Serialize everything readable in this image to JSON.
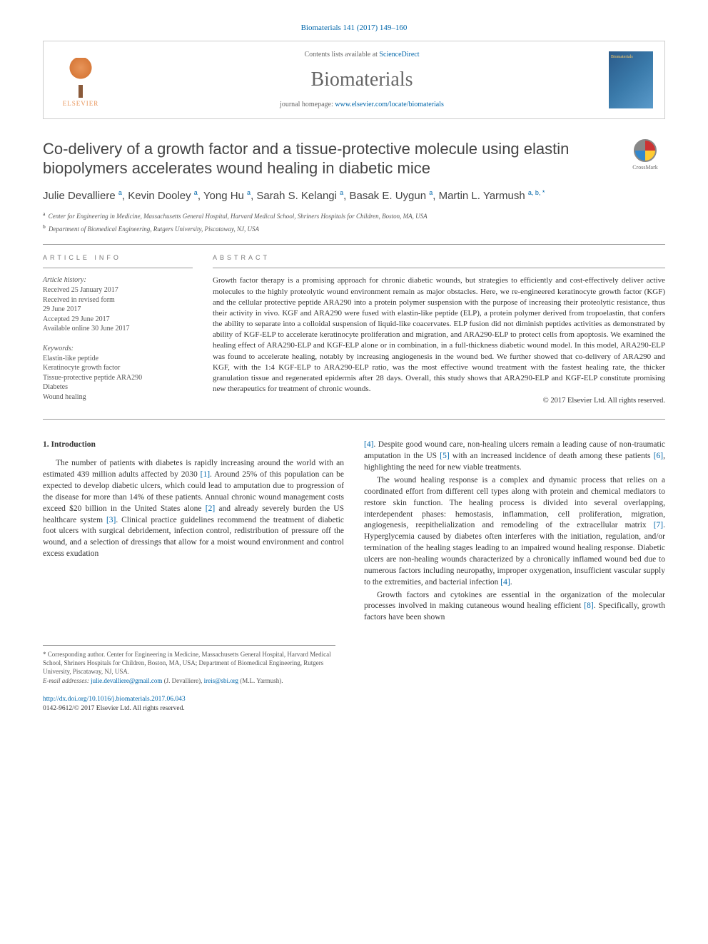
{
  "citation": "Biomaterials 141 (2017) 149–160",
  "header": {
    "contents_prefix": "Contents lists available at ",
    "contents_link": "ScienceDirect",
    "journal": "Biomaterials",
    "homepage_prefix": "journal homepage: ",
    "homepage_url": "www.elsevier.com/locate/biomaterials",
    "publisher": "ELSEVIER"
  },
  "crossmark_label": "CrossMark",
  "title": "Co-delivery of a growth factor and a tissue-protective molecule using elastin biopolymers accelerates wound healing in diabetic mice",
  "authors_html": "Julie Devalliere <sup>a</sup>, Kevin Dooley <sup>a</sup>, Yong Hu <sup>a</sup>, Sarah S. Kelangi <sup>a</sup>, Basak E. Uygun <sup>a</sup>, Martin L. Yarmush <sup>a, b, *</sup>",
  "affiliations": [
    {
      "key": "a",
      "text": "Center for Engineering in Medicine, Massachusetts General Hospital, Harvard Medical School, Shriners Hospitals for Children, Boston, MA, USA"
    },
    {
      "key": "b",
      "text": "Department of Biomedical Engineering, Rutgers University, Piscataway, NJ, USA"
    }
  ],
  "info": {
    "label": "ARTICLE INFO",
    "history_label": "Article history:",
    "history": [
      "Received 25 January 2017",
      "Received in revised form",
      "29 June 2017",
      "Accepted 29 June 2017",
      "Available online 30 June 2017"
    ],
    "keywords_label": "Keywords:",
    "keywords": [
      "Elastin-like peptide",
      "Keratinocyte growth factor",
      "Tissue-protective peptide ARA290",
      "Diabetes",
      "Wound healing"
    ]
  },
  "abstract": {
    "label": "ABSTRACT",
    "text": "Growth factor therapy is a promising approach for chronic diabetic wounds, but strategies to efficiently and cost-effectively deliver active molecules to the highly proteolytic wound environment remain as major obstacles. Here, we re-engineered keratinocyte growth factor (KGF) and the cellular protective peptide ARA290 into a protein polymer suspension with the purpose of increasing their proteolytic resistance, thus their activity in vivo. KGF and ARA290 were fused with elastin-like peptide (ELP), a protein polymer derived from tropoelastin, that confers the ability to separate into a colloidal suspension of liquid-like coacervates. ELP fusion did not diminish peptides activities as demonstrated by ability of KGF-ELP to accelerate keratinocyte proliferation and migration, and ARA290-ELP to protect cells from apoptosis. We examined the healing effect of ARA290-ELP and KGF-ELP alone or in combination, in a full-thickness diabetic wound model. In this model, ARA290-ELP was found to accelerate healing, notably by increasing angiogenesis in the wound bed. We further showed that co-delivery of ARA290 and KGF, with the 1:4 KGF-ELP to ARA290-ELP ratio, was the most effective wound treatment with the fastest healing rate, the thicker granulation tissue and regenerated epidermis after 28 days. Overall, this study shows that ARA290-ELP and KGF-ELP constitute promising new therapeutics for treatment of chronic wounds.",
    "copyright": "© 2017 Elsevier Ltd. All rights reserved."
  },
  "body": {
    "section_number": "1.",
    "section_title": "Introduction",
    "col1_p1_a": "The number of patients with diabetes is rapidly increasing around the world with an estimated 439 million adults affected by 2030 ",
    "col1_p1_b": ". Around 25% of this population can be expected to develop diabetic ulcers, which could lead to amputation due to progression of the disease for more than 14% of these patients. Annual chronic wound management costs exceed $20 billion in the United States alone ",
    "col1_p1_c": " and already severely burden the US healthcare system ",
    "col1_p1_d": ". Clinical practice guidelines recommend the treatment of diabetic foot ulcers with surgical debridement, infection control, redistribution of pressure off the wound, and a selection of dressings that allow for a moist wound environment and control excess exudation",
    "col2_p1_a": ". Despite good wound care, non-healing ulcers remain a leading cause of non-traumatic amputation in the US ",
    "col2_p1_b": " with an increased incidence of death among these patients ",
    "col2_p1_c": ", highlighting the need for new viable treatments.",
    "col2_p2_a": "The wound healing response is a complex and dynamic process that relies on a coordinated effort from different cell types along with protein and chemical mediators to restore skin function. The healing process is divided into several overlapping, interdependent phases: hemostasis, inflammation, cell proliferation, migration, angiogenesis, reepithelialization and remodeling of the extracellular matrix ",
    "col2_p2_b": ". Hyperglycemia caused by diabetes often interferes with the initiation, regulation, and/or termination of the healing stages leading to an impaired wound healing response. Diabetic ulcers are non-healing wounds characterized by a chronically inflamed wound bed due to numerous factors including neuropathy, improper oxygenation, insufficient vascular supply to the extremities, and bacterial infection ",
    "col2_p2_c": ".",
    "col2_p3_a": "Growth factors and cytokines are essential in the organization of the molecular processes involved in making cutaneous wound healing efficient ",
    "col2_p3_b": ". Specifically, growth factors have been shown",
    "refs": {
      "r1": "[1]",
      "r2": "[2]",
      "r3": "[3]",
      "r4": "[4]",
      "r5": "[5]",
      "r6": "[6]",
      "r7": "[7]",
      "r8": "[8]"
    }
  },
  "footnotes": {
    "corr": "* Corresponding author. Center for Engineering in Medicine, Massachusetts General Hospital, Harvard Medical School, Shriners Hospitals for Children, Boston, MA, USA; Department of Biomedical Engineering, Rutgers University, Piscataway, NJ, USA.",
    "email_label": "E-mail addresses:",
    "email1": "julie.devalliere@gmail.com",
    "email1_name": " (J. Devalliere), ",
    "email2": "ireis@sbi.org",
    "email2_name": "(M.L. Yarmush)."
  },
  "footer": {
    "doi": "http://dx.doi.org/10.1016/j.biomaterials.2017.06.043",
    "issn_line": "0142-9612/© 2017 Elsevier Ltd. All rights reserved."
  }
}
